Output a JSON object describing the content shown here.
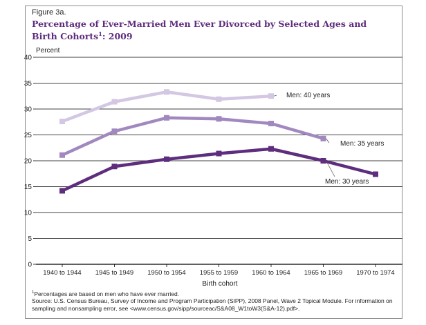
{
  "figure": {
    "label": "Figure 3a.",
    "title_main": "Percentage of Ever-Married Men Ever Divorced by Selected Ages and Birth Cohorts",
    "title_sup": "1",
    "title_end": ": 2009"
  },
  "footnote": {
    "sup": "1",
    "text": "Percentages are based on men who have ever married."
  },
  "source": {
    "line1": "Source:  U.S. Census Bureau, Survey of Income and Program Participation (SIPP), 2008 Panel, Wave 2 Topical Module. For information on",
    "line2": "sampling and nonsampling error, see <www.census.gov/sipp/sourceac/S&A08_W1toW3(S&A-12).pdf>."
  },
  "colors": {
    "men_30": "#5e2d7e",
    "men_35": "#a189bf",
    "men_40": "#d3c7e3",
    "grid": "#000000"
  },
  "chart_data": {
    "type": "line",
    "title": "Percentage of Ever-Married Men Ever Divorced by Selected Ages and Birth Cohorts: 2009",
    "ylabel": "Percent",
    "xlabel": "Birth cohort",
    "ylim": [
      0,
      40
    ],
    "yticks": [
      0,
      5,
      10,
      15,
      20,
      25,
      30,
      35,
      40
    ],
    "grid": true,
    "categories": [
      "1940 to 1944",
      "1945 to 1949",
      "1950 to 1954",
      "1955 to 1959",
      "1960 to 1964",
      "1965 to 1969",
      "1970 to 1974"
    ],
    "series": [
      {
        "name": "Men: 40 years",
        "color": "#d3c7e3",
        "values": [
          27.6,
          31.4,
          33.3,
          31.9,
          32.5,
          null,
          null
        ]
      },
      {
        "name": "Men: 35 years",
        "color": "#a189bf",
        "values": [
          21.1,
          25.7,
          28.3,
          28.1,
          27.2,
          24.3,
          null
        ]
      },
      {
        "name": "Men: 30 years",
        "color": "#5e2d7e",
        "values": [
          14.2,
          18.9,
          20.3,
          21.4,
          22.3,
          20.0,
          17.4
        ]
      }
    ]
  }
}
